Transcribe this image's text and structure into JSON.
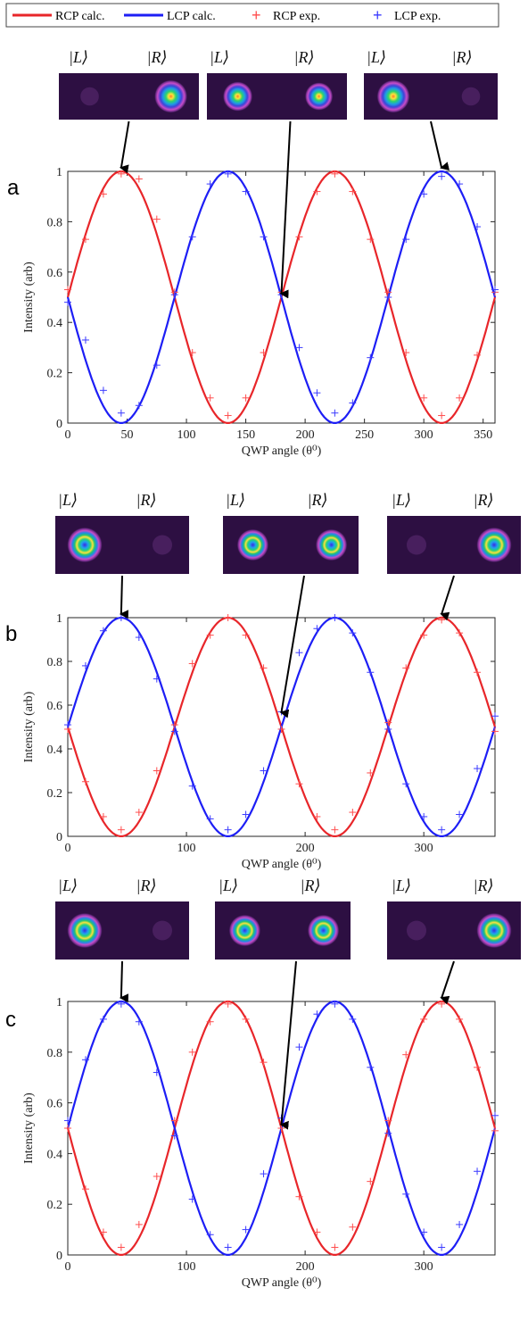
{
  "legend": {
    "entries": [
      {
        "label": "RCP calc.",
        "color": "#e8262a",
        "style": "line"
      },
      {
        "label": "LCP  calc.",
        "color": "#1d1ef5",
        "style": "line"
      },
      {
        "label": "RCP exp.",
        "color": "#ff4d4d",
        "style": "marker"
      },
      {
        "label": "LCP exp.",
        "color": "#3b3bff",
        "style": "marker"
      }
    ]
  },
  "ket_labels": {
    "left": "|L⟩",
    "right": "|R⟩"
  },
  "colors": {
    "rcp": "#e8262a",
    "lcp": "#1d1ef5",
    "rcp_exp": "#ff4d4d",
    "lcp_exp": "#3b3bff",
    "arrow": "#000000"
  },
  "chart_data": [
    {
      "panel_label": "a",
      "type": "line",
      "xlabel": "QWP angle (θ⁰)",
      "ylabel": "Intensity (arb)",
      "xlim": [
        0,
        360
      ],
      "ylim": [
        0,
        1
      ],
      "xticks": [
        0,
        50,
        100,
        150,
        200,
        250,
        300,
        350
      ],
      "xtick_labels": [
        "0",
        "50",
        "100",
        "150",
        "200",
        "250",
        "300",
        "350"
      ],
      "yticks": [
        0,
        0.2,
        0.4,
        0.6,
        0.8,
        1
      ],
      "ytick_labels": [
        "0",
        "0.2",
        "0.4",
        "0.6",
        "0.8",
        "1"
      ],
      "grid": false,
      "series": [
        {
          "name": "RCP calc.",
          "kind": "line",
          "color": "#e8262a",
          "formula": "0.5+0.5*sin(2θ)",
          "x": [
            0,
            45,
            90,
            135,
            180,
            225,
            270,
            315,
            360
          ],
          "y": [
            0.5,
            1,
            0.5,
            0,
            0.5,
            1,
            0.5,
            0,
            0.5
          ]
        },
        {
          "name": "LCP  calc.",
          "kind": "line",
          "color": "#1d1ef5",
          "formula": "0.5-0.5*sin(2θ)",
          "x": [
            0,
            45,
            90,
            135,
            180,
            225,
            270,
            315,
            360
          ],
          "y": [
            0.5,
            0,
            0.5,
            1,
            0.5,
            0,
            0.5,
            1,
            0.5
          ]
        },
        {
          "name": "RCP exp.",
          "kind": "marker",
          "color": "#ff4d4d",
          "x": [
            0,
            15,
            30,
            45,
            60,
            75,
            90,
            105,
            120,
            135,
            150,
            165,
            180,
            195,
            210,
            225,
            240,
            255,
            270,
            285,
            300,
            315,
            330,
            345,
            360
          ],
          "y": [
            0.53,
            0.73,
            0.91,
            0.99,
            0.97,
            0.81,
            0.52,
            0.28,
            0.1,
            0.03,
            0.1,
            0.28,
            0.52,
            0.74,
            0.92,
            0.99,
            0.92,
            0.73,
            0.52,
            0.28,
            0.1,
            0.03,
            0.1,
            0.27,
            0.52
          ]
        },
        {
          "name": "LCP exp.",
          "kind": "marker",
          "color": "#3b3bff",
          "x": [
            0,
            15,
            30,
            45,
            60,
            75,
            90,
            105,
            120,
            135,
            150,
            165,
            180,
            195,
            210,
            225,
            240,
            255,
            270,
            285,
            300,
            315,
            330,
            345,
            360
          ],
          "y": [
            0.48,
            0.33,
            0.13,
            0.04,
            0.07,
            0.23,
            0.51,
            0.74,
            0.95,
            0.99,
            0.92,
            0.74,
            0.51,
            0.3,
            0.12,
            0.04,
            0.08,
            0.26,
            0.5,
            0.73,
            0.91,
            0.98,
            0.95,
            0.78,
            0.53
          ]
        }
      ],
      "beam_images": [
        {
          "x_target": 45,
          "y_target": 1,
          "left": 0.03,
          "right": 1.0
        },
        {
          "x_target": 180,
          "y_target": 0.5,
          "left": 0.9,
          "right": 0.85
        },
        {
          "x_target": 315,
          "y_target": 1,
          "left": 1.0,
          "right": 0.03
        }
      ]
    },
    {
      "panel_label": "b",
      "type": "line",
      "xlabel": "QWP angle (θ⁰)",
      "ylabel": "Intensity (arb)",
      "xlim": [
        0,
        360
      ],
      "ylim": [
        0,
        1
      ],
      "xticks": [
        0,
        100,
        200,
        300
      ],
      "xtick_labels": [
        "0",
        "100",
        "200",
        "300"
      ],
      "yticks": [
        0,
        0.2,
        0.4,
        0.6,
        0.8,
        1
      ],
      "ytick_labels": [
        "0",
        "0.2",
        "0.4",
        "0.6",
        "0.8",
        "1"
      ],
      "grid": false,
      "series": [
        {
          "name": "RCP calc.",
          "kind": "line",
          "color": "#e8262a",
          "formula": "0.5-0.5*sin(2θ)",
          "x": [
            0,
            45,
            90,
            135,
            180,
            225,
            270,
            315,
            360
          ],
          "y": [
            0.5,
            0,
            0.5,
            1,
            0.5,
            0,
            0.5,
            1,
            0.5
          ]
        },
        {
          "name": "LCP  calc.",
          "kind": "line",
          "color": "#1d1ef5",
          "formula": "0.5+0.5*sin(2θ)",
          "x": [
            0,
            45,
            90,
            135,
            180,
            225,
            270,
            315,
            360
          ],
          "y": [
            0.5,
            1,
            0.5,
            0,
            0.5,
            1,
            0.5,
            0,
            0.5
          ]
        },
        {
          "name": "RCP exp.",
          "kind": "marker",
          "color": "#ff4d4d",
          "x": [
            0,
            15,
            30,
            45,
            60,
            75,
            90,
            105,
            120,
            135,
            150,
            165,
            180,
            195,
            210,
            225,
            240,
            255,
            270,
            285,
            300,
            315,
            330,
            345,
            360
          ],
          "y": [
            0.49,
            0.25,
            0.09,
            0.03,
            0.11,
            0.3,
            0.51,
            0.79,
            0.92,
            1.0,
            0.92,
            0.77,
            0.49,
            0.24,
            0.09,
            0.03,
            0.11,
            0.29,
            0.52,
            0.77,
            0.92,
            0.99,
            0.93,
            0.75,
            0.48
          ]
        },
        {
          "name": "LCP exp.",
          "kind": "marker",
          "color": "#3b3bff",
          "x": [
            0,
            15,
            30,
            45,
            60,
            75,
            90,
            105,
            120,
            135,
            150,
            165,
            180,
            195,
            210,
            225,
            240,
            255,
            270,
            285,
            300,
            315,
            330,
            345,
            360
          ],
          "y": [
            0.51,
            0.78,
            0.94,
            1.0,
            0.91,
            0.72,
            0.48,
            0.23,
            0.08,
            0.03,
            0.1,
            0.3,
            0.57,
            0.84,
            0.95,
            1.0,
            0.93,
            0.75,
            0.49,
            0.24,
            0.09,
            0.03,
            0.1,
            0.31,
            0.55
          ]
        }
      ],
      "beam_images": [
        {
          "x_target": 45,
          "y_target": 1,
          "left": 1.0,
          "right": 0.04
        },
        {
          "x_target": 180,
          "y_target": 0.55,
          "left": 0.9,
          "right": 0.9
        },
        {
          "x_target": 315,
          "y_target": 1,
          "left": 0.08,
          "right": 1.0
        }
      ]
    },
    {
      "panel_label": "c",
      "type": "line",
      "xlabel": "QWP angle (θ⁰)",
      "ylabel": "Intensity (arb)",
      "xlim": [
        0,
        360
      ],
      "ylim": [
        0,
        1
      ],
      "xticks": [
        0,
        100,
        200,
        300
      ],
      "xtick_labels": [
        "0",
        "100",
        "200",
        "300"
      ],
      "yticks": [
        0,
        0.2,
        0.4,
        0.6,
        0.8,
        1
      ],
      "ytick_labels": [
        "0",
        "0.2",
        "0.4",
        "0.6",
        "0.8",
        "1"
      ],
      "grid": false,
      "series": [
        {
          "name": "RCP calc.",
          "kind": "line",
          "color": "#e8262a",
          "formula": "0.5-0.5*sin(2θ)",
          "x": [
            0,
            45,
            90,
            135,
            180,
            225,
            270,
            315,
            360
          ],
          "y": [
            0.5,
            0,
            0.5,
            1,
            0.5,
            0,
            0.5,
            1,
            0.5
          ]
        },
        {
          "name": "LCP  calc.",
          "kind": "line",
          "color": "#1d1ef5",
          "formula": "0.5+0.5*sin(2θ)",
          "x": [
            0,
            45,
            90,
            135,
            180,
            225,
            270,
            315,
            360
          ],
          "y": [
            0.5,
            1,
            0.5,
            0,
            0.5,
            1,
            0.5,
            0,
            0.5
          ]
        },
        {
          "name": "RCP exp.",
          "kind": "marker",
          "color": "#ff4d4d",
          "x": [
            0,
            15,
            30,
            45,
            60,
            75,
            90,
            105,
            120,
            135,
            150,
            165,
            180,
            195,
            210,
            225,
            240,
            255,
            270,
            285,
            300,
            315,
            330,
            345,
            360
          ],
          "y": [
            0.5,
            0.26,
            0.09,
            0.03,
            0.12,
            0.31,
            0.53,
            0.8,
            0.92,
            0.99,
            0.93,
            0.76,
            0.5,
            0.23,
            0.09,
            0.03,
            0.11,
            0.29,
            0.53,
            0.79,
            0.93,
            0.99,
            0.93,
            0.74,
            0.49
          ]
        },
        {
          "name": "LCP exp.",
          "kind": "marker",
          "color": "#3b3bff",
          "x": [
            0,
            15,
            30,
            45,
            60,
            75,
            90,
            105,
            120,
            135,
            150,
            165,
            180,
            195,
            210,
            225,
            240,
            255,
            270,
            285,
            300,
            315,
            330,
            345,
            360
          ],
          "y": [
            0.53,
            0.77,
            0.93,
            0.99,
            0.92,
            0.72,
            0.47,
            0.22,
            0.08,
            0.03,
            0.1,
            0.32,
            0.54,
            0.82,
            0.95,
            0.99,
            0.93,
            0.74,
            0.48,
            0.24,
            0.09,
            0.03,
            0.12,
            0.33,
            0.55
          ]
        }
      ],
      "beam_images": [
        {
          "x_target": 45,
          "y_target": 1,
          "left": 1.0,
          "right": 0.04
        },
        {
          "x_target": 180,
          "y_target": 0.5,
          "left": 0.9,
          "right": 0.9
        },
        {
          "x_target": 315,
          "y_target": 1,
          "left": 0.04,
          "right": 1.0
        }
      ]
    }
  ]
}
